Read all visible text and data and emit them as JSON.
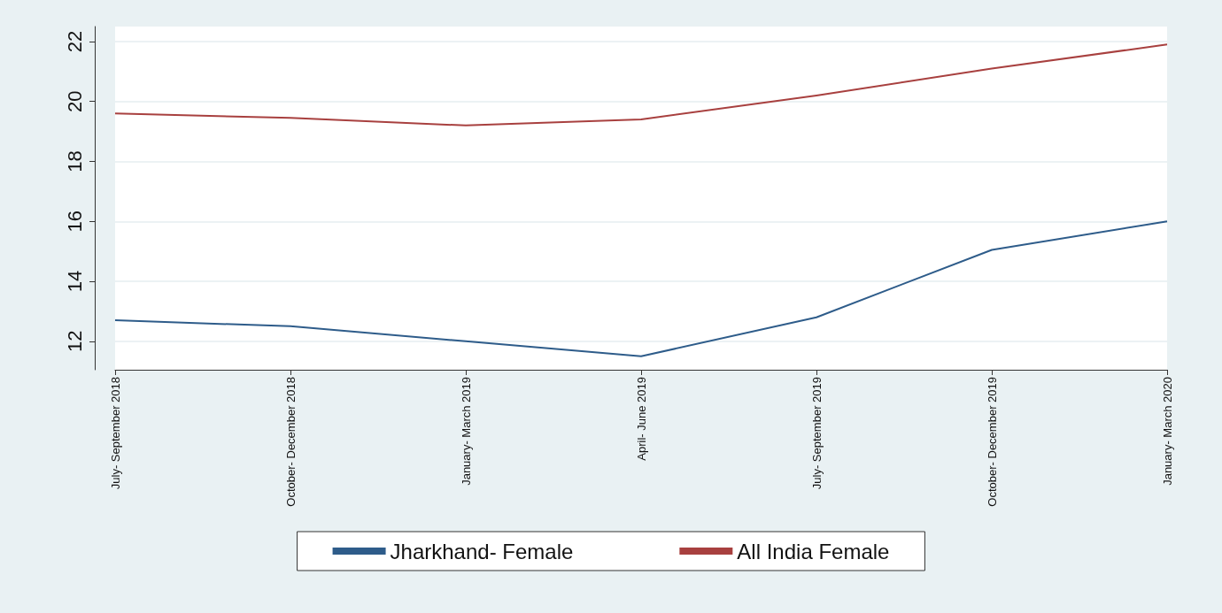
{
  "chart_data": {
    "type": "line",
    "categories": [
      "July- September 2018",
      "October- December 2018",
      "January- March 2019",
      "April- June 2019",
      "July- September 2019",
      "October- December 2019",
      "January- March 2020"
    ],
    "series": [
      {
        "name": "Jharkhand- Female",
        "color": "#2e5c8a",
        "values": [
          12.7,
          12.5,
          12.0,
          11.5,
          12.8,
          15.05,
          16.0
        ]
      },
      {
        "name": "All India Female",
        "color": "#a8403f",
        "values": [
          19.6,
          19.45,
          19.2,
          19.4,
          20.2,
          21.1,
          21.9
        ]
      }
    ],
    "ylim": [
      11.05,
      22.5
    ],
    "yticks": [
      12,
      14,
      16,
      18,
      20,
      22
    ],
    "grid": "y",
    "legend": "bottom",
    "marker": "none",
    "line_style": "solid"
  }
}
